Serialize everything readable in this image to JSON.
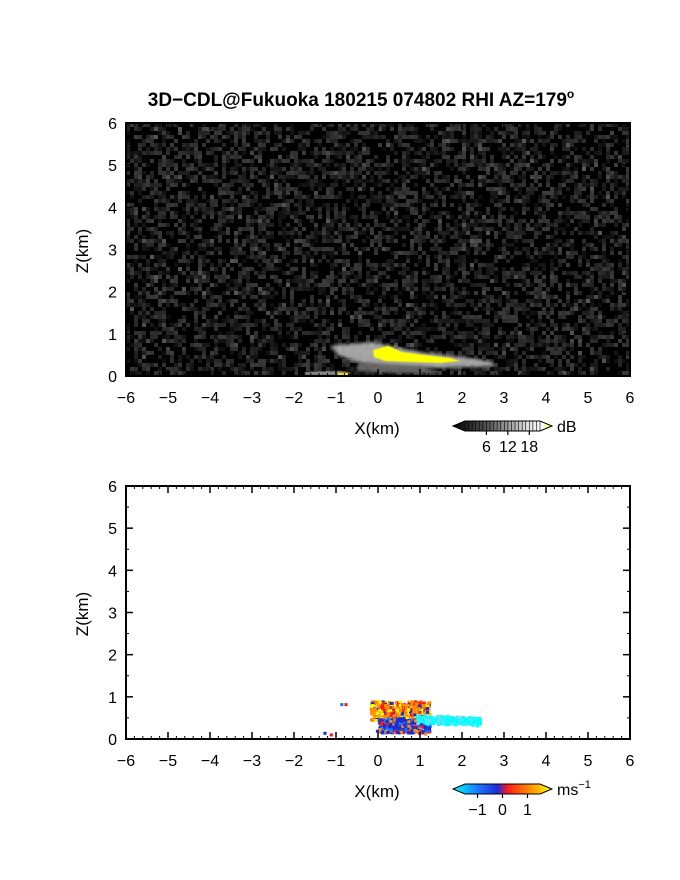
{
  "chart_data": [
    {
      "type": "heatmap",
      "title": "3D−CDL@Fukuoka 180215 074802 RHI AZ=179",
      "title_superscript": "o",
      "xlabel": "X(km)",
      "ylabel": "Z(km)",
      "xlim": [
        -6,
        6
      ],
      "ylim": [
        0,
        6
      ],
      "x_ticks": [
        -6,
        -5,
        -4,
        -3,
        -2,
        -1,
        0,
        1,
        2,
        3,
        4,
        5,
        6
      ],
      "x_tick_labels": [
        "−6",
        "−5",
        "−4",
        "−3",
        "−2",
        "−1",
        "0",
        "1",
        "2",
        "3",
        "4",
        "5",
        "6"
      ],
      "y_ticks": [
        0,
        1,
        2,
        3,
        4,
        5,
        6
      ],
      "y_tick_labels": [
        "0",
        "1",
        "2",
        "3",
        "4",
        "5",
        "6"
      ],
      "background": "noise, black to dark gray (~0–4 dB)",
      "colorbar": {
        "unit": "dB",
        "ticks": [
          6,
          12,
          18
        ],
        "tick_labels": [
          "6",
          "12",
          "18"
        ],
        "colors": [
          "#000000",
          "#3a3a3a",
          "#7a7a7a",
          "#bbbbbb",
          "#ffffff",
          "#ffff00"
        ]
      },
      "features": [
        {
          "name": "gray echo layer",
          "x": [
            -1.1,
            2.8
          ],
          "z": [
            0.2,
            0.75
          ],
          "value_range_db": [
            4,
            14
          ],
          "color": "#9a9a9a"
        },
        {
          "name": "strong echo core",
          "x": [
            -0.1,
            1.9
          ],
          "z": [
            0.35,
            0.62
          ],
          "value_range_db": [
            17,
            22
          ],
          "color": "#ffff00"
        }
      ]
    },
    {
      "type": "heatmap",
      "xlabel": "X(km)",
      "ylabel": "Z(km)",
      "xlim": [
        -6,
        6
      ],
      "ylim": [
        0,
        6
      ],
      "x_ticks": [
        -6,
        -5,
        -4,
        -3,
        -2,
        -1,
        0,
        1,
        2,
        3,
        4,
        5,
        6
      ],
      "x_tick_labels": [
        "−6",
        "−5",
        "−4",
        "−3",
        "−2",
        "−1",
        "0",
        "1",
        "2",
        "3",
        "4",
        "5",
        "6"
      ],
      "y_ticks": [
        0,
        1,
        2,
        3,
        4,
        5,
        6
      ],
      "y_tick_labels": [
        "0",
        "1",
        "2",
        "3",
        "4",
        "5",
        "6"
      ],
      "background": "white (no data)",
      "colorbar": {
        "unit": "ms",
        "unit_superscript": "−1",
        "ticks": [
          -1,
          0,
          1
        ],
        "tick_labels": [
          "−1",
          "0",
          "1"
        ],
        "colors": [
          "#00ffff",
          "#1a78ff",
          "#1a2bd8",
          "#ff1a1a",
          "#ff9000",
          "#ffff00"
        ]
      },
      "features": [
        {
          "name": "positive velocity core",
          "x": [
            -0.2,
            1.2
          ],
          "z": [
            0.4,
            0.85
          ],
          "value_range_ms": [
            0.2,
            1.2
          ],
          "color": "#ff8c00"
        },
        {
          "name": "negative velocity core",
          "x": [
            0.0,
            1.2
          ],
          "z": [
            0.1,
            0.45
          ],
          "value_range_ms": [
            -0.6,
            0.0
          ],
          "color": "#1a3bd8"
        },
        {
          "name": "light negative tail",
          "x": [
            0.9,
            2.4
          ],
          "z": [
            0.3,
            0.5
          ],
          "value_range_ms": [
            -1.2,
            -0.8
          ],
          "color": "#00ffff"
        }
      ]
    }
  ]
}
